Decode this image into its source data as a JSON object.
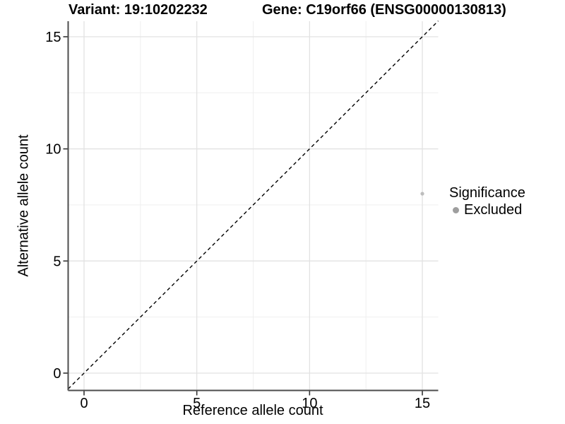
{
  "header": {
    "variant_title": "Variant: 19:10202232",
    "gene_title": "Gene: C19orf66 (ENSG00000130813)"
  },
  "chart_data": {
    "type": "scatter",
    "xlabel": "Reference allele count",
    "ylabel": "Alternative allele count",
    "x_ticks": [
      0,
      5,
      10,
      15
    ],
    "y_ticks": [
      0,
      5,
      10,
      15
    ],
    "x_minor_ticks": [
      2.5,
      7.5,
      12.5
    ],
    "y_minor_ticks": [
      2.5,
      7.5,
      12.5
    ],
    "xlim": [
      -0.705,
      15.705
    ],
    "ylim": [
      -0.705,
      15.705
    ],
    "grid": {
      "shown": true,
      "major_color": "#e2e2e2",
      "minor_color": "#efefef"
    },
    "axis_color": "#4d4d4d",
    "tick_color": "#333333",
    "identity_line": {
      "shown": true,
      "style": "dashed",
      "color": "#000000",
      "equation": "y = x"
    },
    "series": [
      {
        "name": "Excluded",
        "color": "#bdbdbd",
        "points": [
          {
            "x": 15,
            "y": 8
          }
        ]
      }
    ],
    "legend": {
      "title": "Significance",
      "position": "right",
      "items": [
        {
          "label": "Excluded",
          "color": "#9e9e9e"
        }
      ]
    }
  }
}
